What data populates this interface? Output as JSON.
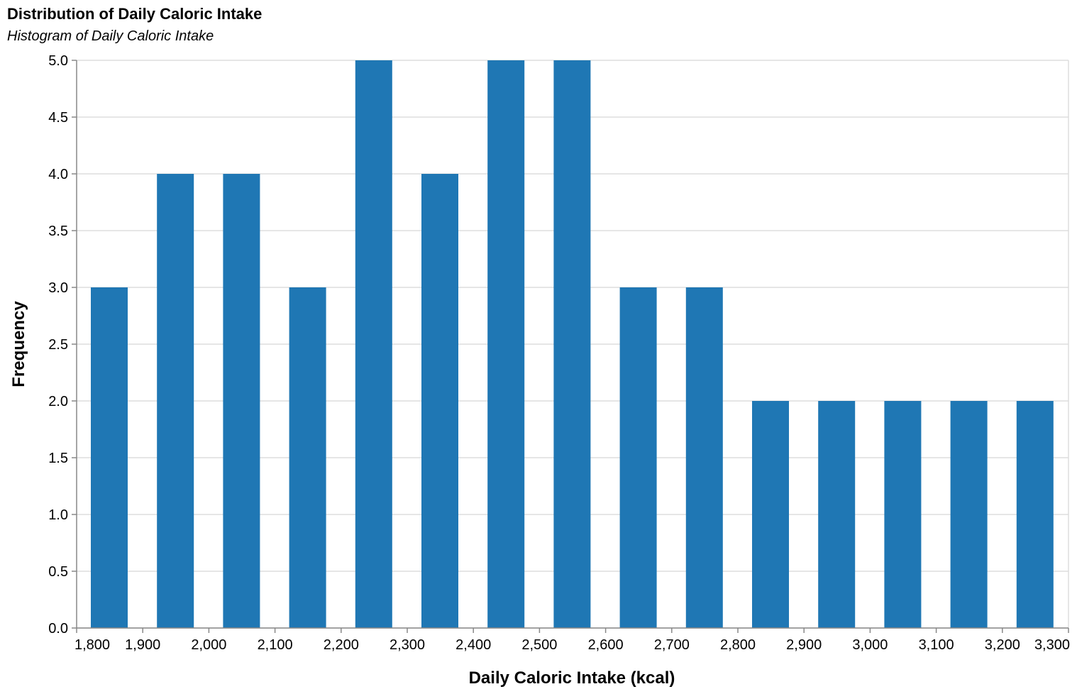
{
  "chart_data": {
    "type": "bar",
    "title": "Distribution of Daily Caloric Intake",
    "subtitle": "Histogram of Daily Caloric Intake",
    "xlabel": "Daily Caloric Intake (kcal)",
    "ylabel": "Frequency",
    "bin_width": 100,
    "bins": [
      {
        "start": 1800,
        "end": 1900,
        "count": 3
      },
      {
        "start": 1900,
        "end": 2000,
        "count": 4
      },
      {
        "start": 2000,
        "end": 2100,
        "count": 4
      },
      {
        "start": 2100,
        "end": 2200,
        "count": 3
      },
      {
        "start": 2200,
        "end": 2300,
        "count": 5
      },
      {
        "start": 2300,
        "end": 2400,
        "count": 4
      },
      {
        "start": 2400,
        "end": 2500,
        "count": 5
      },
      {
        "start": 2500,
        "end": 2600,
        "count": 5
      },
      {
        "start": 2600,
        "end": 2700,
        "count": 3
      },
      {
        "start": 2700,
        "end": 2800,
        "count": 3
      },
      {
        "start": 2800,
        "end": 2900,
        "count": 2
      },
      {
        "start": 2900,
        "end": 3000,
        "count": 2
      },
      {
        "start": 3000,
        "end": 3100,
        "count": 2
      },
      {
        "start": 3100,
        "end": 3200,
        "count": 2
      },
      {
        "start": 3200,
        "end": 3300,
        "count": 2
      }
    ],
    "xlim": [
      1800,
      3300
    ],
    "ylim": [
      0,
      5
    ],
    "x_ticks": [
      1800,
      1900,
      2000,
      2100,
      2200,
      2300,
      2400,
      2500,
      2600,
      2700,
      2800,
      2900,
      3000,
      3100,
      3200,
      3300
    ],
    "x_tick_labels": [
      "1,800",
      "1,900",
      "2,000",
      "2,100",
      "2,200",
      "2,300",
      "2,400",
      "2,500",
      "2,600",
      "2,700",
      "2,800",
      "2,900",
      "3,000",
      "3,100",
      "3,200",
      "3,300"
    ],
    "y_ticks": [
      0,
      0.5,
      1,
      1.5,
      2,
      2.5,
      3,
      3.5,
      4,
      4.5,
      5
    ],
    "y_tick_labels": [
      "0.0",
      "0.5",
      "1.0",
      "1.5",
      "2.0",
      "2.5",
      "3.0",
      "3.5",
      "4.0",
      "4.5",
      "5.0"
    ],
    "grid": true,
    "bar_color": "#1f77b4",
    "grid_color": "#dddddd",
    "axis_color": "#888888"
  }
}
